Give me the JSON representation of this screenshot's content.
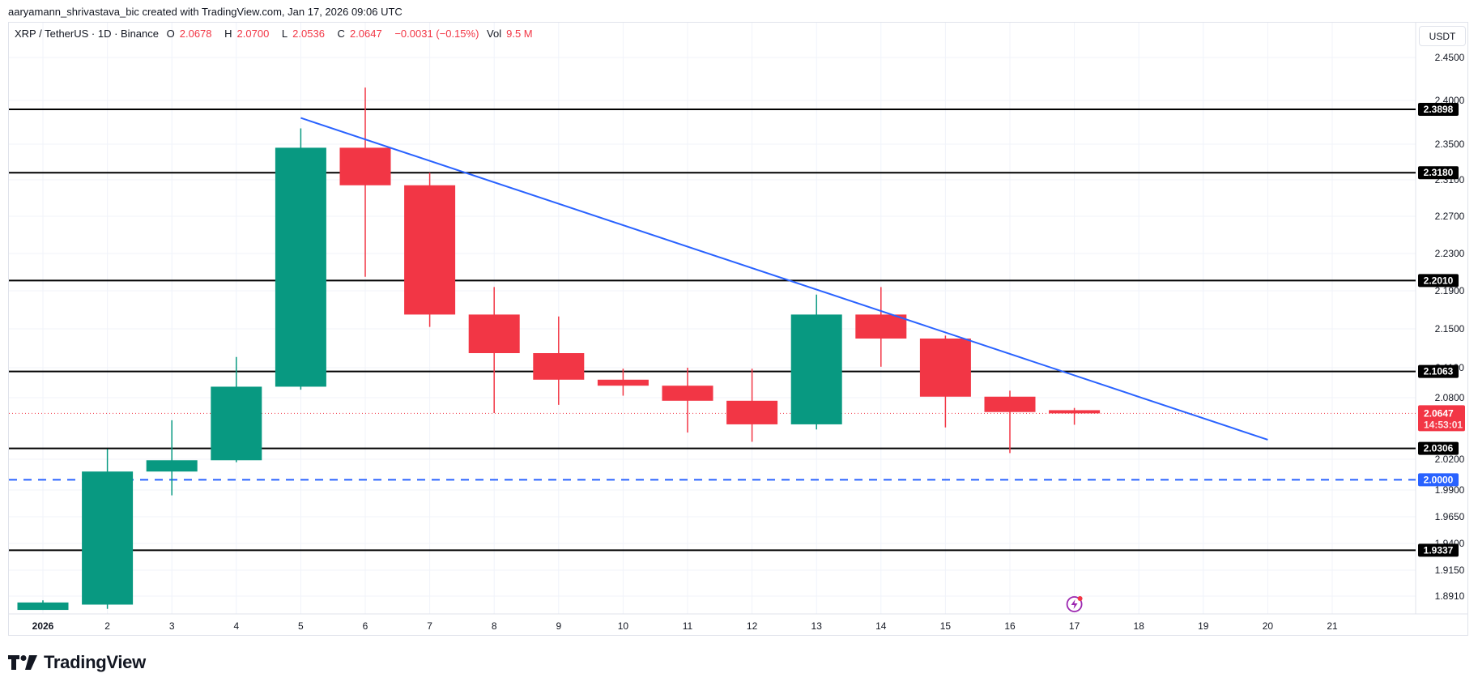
{
  "attribution": "aaryamann_shrivastava_bic created with TradingView.com, Jan 17, 2026 09:06 UTC",
  "legend": {
    "symbol": "XRP / TetherUS · 1D · Binance",
    "open_label": "O",
    "open": "2.0678",
    "high_label": "H",
    "high": "2.0700",
    "low_label": "L",
    "low": "2.0536",
    "close_label": "C",
    "close": "2.0647",
    "change": "−0.0031 (−0.15%)",
    "vol_label": "Vol",
    "vol": "9.5 M"
  },
  "currency_button": "USDT",
  "footer": {
    "logo_text": "TradingView"
  },
  "colors": {
    "up": "#089981",
    "down": "#f23645",
    "trendline": "#2962ff",
    "level_line": "#000000",
    "grid": "#f0f3fa",
    "last_price": "#f23645"
  },
  "chart_data": {
    "type": "candlestick",
    "title": "XRP / TetherUS · 1D · Binance",
    "xlabel": "",
    "ylabel": "USDT",
    "x_tick_labels": [
      "2026",
      "2",
      "3",
      "4",
      "5",
      "6",
      "7",
      "8",
      "9",
      "10",
      "11",
      "12",
      "13",
      "14",
      "15",
      "16",
      "17",
      "18",
      "19",
      "20",
      "21"
    ],
    "y_tick_labels": [
      "2.4500",
      "2.4000",
      "2.3500",
      "2.3100",
      "2.2700",
      "2.2300",
      "2.1900",
      "2.1500",
      "2.1100",
      "2.0800",
      "2.0200",
      "1.9900",
      "1.9650",
      "1.9400",
      "1.9150",
      "1.8910"
    ],
    "ylim": [
      1.875,
      2.47
    ],
    "grid": true,
    "candles": [
      {
        "day": "2026",
        "o": 1.878,
        "h": 1.887,
        "l": 1.878,
        "c": 1.885
      },
      {
        "day": "2",
        "o": 1.883,
        "h": 2.03,
        "l": 1.879,
        "c": 2.008
      },
      {
        "day": "3",
        "o": 2.008,
        "h": 2.058,
        "l": 1.985,
        "c": 2.019
      },
      {
        "day": "4",
        "o": 2.019,
        "h": 2.121,
        "l": 2.017,
        "c": 2.091
      },
      {
        "day": "5",
        "o": 2.091,
        "h": 2.368,
        "l": 2.088,
        "c": 2.346
      },
      {
        "day": "6",
        "o": 2.346,
        "h": 2.415,
        "l": 2.205,
        "c": 2.304
      },
      {
        "day": "7",
        "o": 2.304,
        "h": 2.318,
        "l": 2.152,
        "c": 2.165
      },
      {
        "day": "8",
        "o": 2.165,
        "h": 2.194,
        "l": 2.065,
        "c": 2.125
      },
      {
        "day": "9",
        "o": 2.125,
        "h": 2.163,
        "l": 2.073,
        "c": 2.098
      },
      {
        "day": "10",
        "o": 2.098,
        "h": 2.109,
        "l": 2.082,
        "c": 2.092
      },
      {
        "day": "11",
        "o": 2.092,
        "h": 2.11,
        "l": 2.046,
        "c": 2.077
      },
      {
        "day": "12",
        "o": 2.077,
        "h": 2.109,
        "l": 2.037,
        "c": 2.054
      },
      {
        "day": "13",
        "o": 2.054,
        "h": 2.186,
        "l": 2.049,
        "c": 2.165
      },
      {
        "day": "14",
        "o": 2.165,
        "h": 2.194,
        "l": 2.111,
        "c": 2.14
      },
      {
        "day": "15",
        "o": 2.14,
        "h": 2.143,
        "l": 2.051,
        "c": 2.081
      },
      {
        "day": "16",
        "o": 2.081,
        "h": 2.087,
        "l": 2.026,
        "c": 2.066
      },
      {
        "day": "17",
        "o": 2.0678,
        "h": 2.07,
        "l": 2.0536,
        "c": 2.0647
      }
    ],
    "horizontal_levels": [
      {
        "price": 2.3898,
        "label": "2.3898",
        "style": "solid",
        "color": "#000000"
      },
      {
        "price": 2.318,
        "label": "2.3180",
        "style": "solid",
        "color": "#000000"
      },
      {
        "price": 2.201,
        "label": "2.2010",
        "style": "solid",
        "color": "#000000"
      },
      {
        "price": 2.1063,
        "label": "2.1063",
        "style": "solid",
        "color": "#000000"
      },
      {
        "price": 2.0306,
        "label": "2.0306",
        "style": "solid",
        "color": "#000000"
      },
      {
        "price": 2.0,
        "label": "2.0000",
        "style": "dashed",
        "color": "#2962ff"
      },
      {
        "price": 1.9337,
        "label": "1.9337",
        "style": "solid",
        "color": "#000000"
      }
    ],
    "trendline": {
      "from": {
        "day_index": 4,
        "price": 2.38
      },
      "to": {
        "day_index": 19,
        "price": 2.039
      }
    },
    "last_price": {
      "price": 2.0647,
      "label": "2.0647",
      "countdown": "14:53:01"
    },
    "annotations": [
      {
        "type": "lightning-event-icon",
        "day": "17"
      }
    ]
  }
}
